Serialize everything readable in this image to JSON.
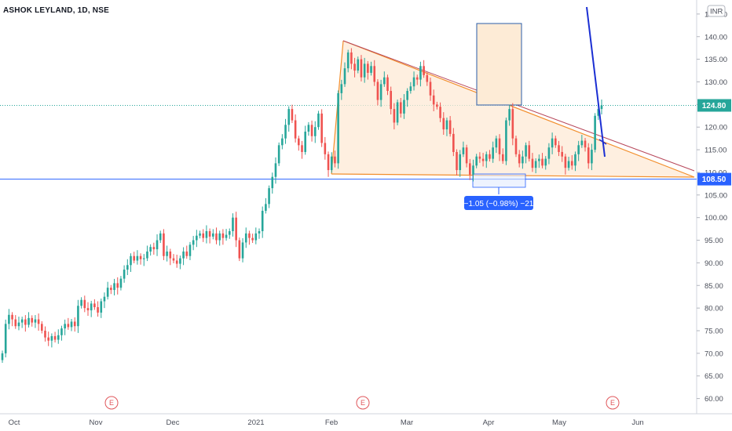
{
  "header": {
    "title": "ASHOK LEYLAND, 1D, NSE"
  },
  "currency_badge": "INR",
  "price_tags": {
    "current": "124.80",
    "support": "108.50"
  },
  "measure_label": "−1.05 (−0.98%) −21",
  "earnings_marker": "E",
  "colors": {
    "up": "#26a69a",
    "down": "#ef5350",
    "line": "#2962ff",
    "triangle_fill": "#fde9d5",
    "triangle_edge": "#f28e2c",
    "box_fill": "#fdebd6"
  },
  "chart_data": {
    "type": "candlestick",
    "symbol": "ASHOK LEYLAND",
    "interval": "1D",
    "exchange": "NSE",
    "ylim": [
      57.5,
      148
    ],
    "y_ticks": [
      "60.00",
      "65.00",
      "70.00",
      "75.00",
      "80.00",
      "85.00",
      "90.00",
      "95.00",
      "100.00",
      "105.00",
      "110.00",
      "115.00",
      "120.00",
      "125.00",
      "130.00",
      "135.00",
      "140.00",
      "145.00"
    ],
    "x_ticks": [
      "Oct",
      "Nov",
      "Dec",
      "2021",
      "Feb",
      "Mar",
      "Apr",
      "May",
      "Jun"
    ],
    "horizontal_lines": [
      {
        "price": 124.8,
        "style": "dotted"
      },
      {
        "price": 108.5,
        "style": "solid"
      }
    ],
    "current_price": 124.8,
    "support_price": 108.5,
    "closes": [
      70.0,
      76.5,
      78.5,
      77.5,
      76.0,
      76.8,
      77.5,
      76.3,
      77.8,
      76.8,
      77.5,
      76.5,
      75.0,
      73.5,
      72.8,
      73.8,
      73.0,
      74.0,
      75.5,
      76.5,
      75.8,
      77.0,
      76.0,
      80.5,
      81.8,
      80.0,
      79.5,
      81.0,
      80.2,
      79.0,
      81.5,
      82.5,
      84.5,
      84.0,
      85.5,
      84.5,
      86.5,
      88.5,
      89.5,
      91.5,
      90.5,
      91.5,
      90.8,
      91.0,
      92.5,
      93.5,
      93.0,
      95.0,
      96.5,
      91.5,
      92.5,
      91.0,
      90.5,
      89.8,
      91.0,
      92.5,
      91.5,
      94.0,
      95.0,
      96.0,
      96.5,
      95.5,
      97.0,
      95.8,
      96.5,
      95.0,
      96.5,
      95.5,
      96.2,
      97.0,
      100.0,
      95.0,
      91.0,
      94.5,
      96.5,
      95.5,
      95.0,
      96.5,
      97.0,
      101.5,
      103.0,
      106.5,
      109.0,
      112.0,
      116.0,
      117.5,
      120.5,
      124.0,
      121.5,
      117.5,
      116.0,
      114.5,
      119.0,
      120.5,
      118.0,
      120.0,
      123.0,
      116.5,
      114.0,
      110.5,
      113.5,
      112.0,
      127.5,
      129.5,
      133.0,
      136.5,
      134.0,
      132.5,
      135.0,
      131.0,
      134.0,
      132.0,
      133.5,
      130.0,
      126.0,
      129.5,
      131.0,
      128.0,
      124.0,
      121.0,
      125.5,
      123.0,
      126.0,
      128.0,
      129.0,
      131.0,
      130.5,
      133.5,
      131.5,
      130.0,
      127.0,
      125.0,
      124.5,
      122.0,
      119.5,
      121.5,
      118.5,
      114.5,
      110.5,
      114.0,
      115.5,
      112.0,
      109.5,
      111.5,
      113.5,
      113.0,
      112.5,
      114.0,
      113.0,
      115.5,
      117.5,
      114.0,
      112.5,
      121.5,
      124.0,
      117.5,
      114.0,
      112.0,
      113.5,
      116.0,
      113.0,
      111.0,
      112.5,
      113.0,
      111.5,
      113.0,
      115.5,
      117.5,
      116.0,
      114.5,
      113.5,
      111.0,
      112.5,
      111.5,
      114.0,
      116.0,
      117.0,
      115.5,
      112.0,
      115.0,
      122.5,
      124.0,
      124.8
    ],
    "measure": {
      "price_change": -1.05,
      "percent_change": -0.98,
      "bars": -21
    },
    "annotations": [
      "descending triangle",
      "breakout projection box",
      "blue trend lines"
    ]
  }
}
